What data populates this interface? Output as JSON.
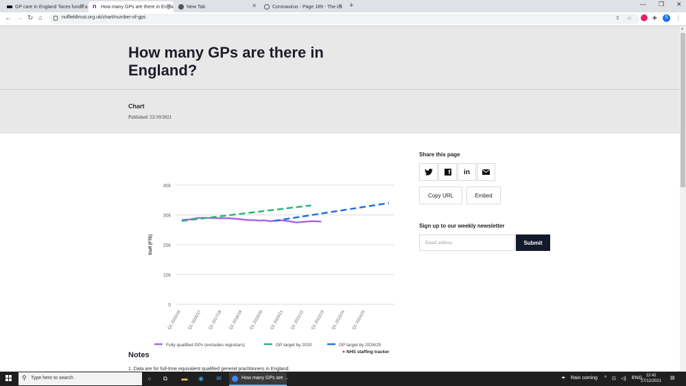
{
  "browser": {
    "tabs": [
      {
        "title": "GP care in England 'faces funds a",
        "active": false
      },
      {
        "title": "How many GPs are there in Engla",
        "active": true
      },
      {
        "title": "New Tab",
        "active": false
      },
      {
        "title": "Coronavirus - Page 189 - The Lo",
        "active": false
      }
    ],
    "url": "nuffieldtrust.org.uk/chart/number-of-gps",
    "profile_initial": "S"
  },
  "page": {
    "title": "How many GPs are there in England?",
    "kind": "Chart",
    "published": "Published: 22/10/2021",
    "share": {
      "title": "Share this page",
      "copy_url": "Copy URL",
      "embed": "Embed"
    },
    "newsletter": {
      "title": "Sign up to our weekly newsletter",
      "placeholder": "Email address",
      "submit": "Submit"
    },
    "notes": {
      "title": "Notes",
      "first_line": "1. Data are for full-time equivalent qualified general practitioners in England."
    }
  },
  "chart_data": {
    "type": "line",
    "ylabel": "Staff (FTE)",
    "xlabel": "",
    "ylim": [
      0,
      40000
    ],
    "yticks": [
      0,
      10000,
      20000,
      30000,
      40000
    ],
    "ytick_labels": [
      "0",
      "10k",
      "20k",
      "30k",
      "40k"
    ],
    "categories": [
      "Q1 2015/16",
      "Q1 2016/17",
      "Q1 2017/18",
      "Q1 2018/19",
      "Q1 2019/20",
      "Q1 2020/21",
      "Q1 2021/22",
      "Q1 2022/23",
      "Q1 2023/24",
      "Q1 2024/25"
    ],
    "grid": true,
    "legend": "bottom",
    "series": [
      {
        "name": "Fully qualified GPs (excludes registrars)",
        "color": "#a866e8",
        "dash": false,
        "points": [
          [
            0.2,
            28300
          ],
          [
            0.6,
            28500
          ],
          [
            1.0,
            29000
          ],
          [
            1.5,
            29000
          ],
          [
            2.0,
            28900
          ],
          [
            2.5,
            28900
          ],
          [
            3.0,
            28600
          ],
          [
            3.4,
            28300
          ],
          [
            3.8,
            28200
          ],
          [
            4.0,
            28100
          ],
          [
            4.2,
            28200
          ],
          [
            4.5,
            27900
          ],
          [
            4.8,
            28100
          ],
          [
            5.0,
            28200
          ],
          [
            5.2,
            28100
          ],
          [
            5.5,
            27800
          ],
          [
            5.8,
            27500
          ],
          [
            6.0,
            27600
          ],
          [
            6.3,
            27800
          ],
          [
            6.6,
            27900
          ],
          [
            7.0,
            27800
          ]
        ]
      },
      {
        "name": "GP target by 2020",
        "color": "#22b573",
        "dash": true,
        "points": [
          [
            0.2,
            28000
          ],
          [
            6.5,
            33200
          ]
        ]
      },
      {
        "name": "GP target by 2024/25",
        "color": "#1f6fe0",
        "dash": true,
        "points": [
          [
            4.7,
            28000
          ],
          [
            10.3,
            34000
          ]
        ]
      }
    ],
    "source_label": "NHS staffing tracker"
  }
}
